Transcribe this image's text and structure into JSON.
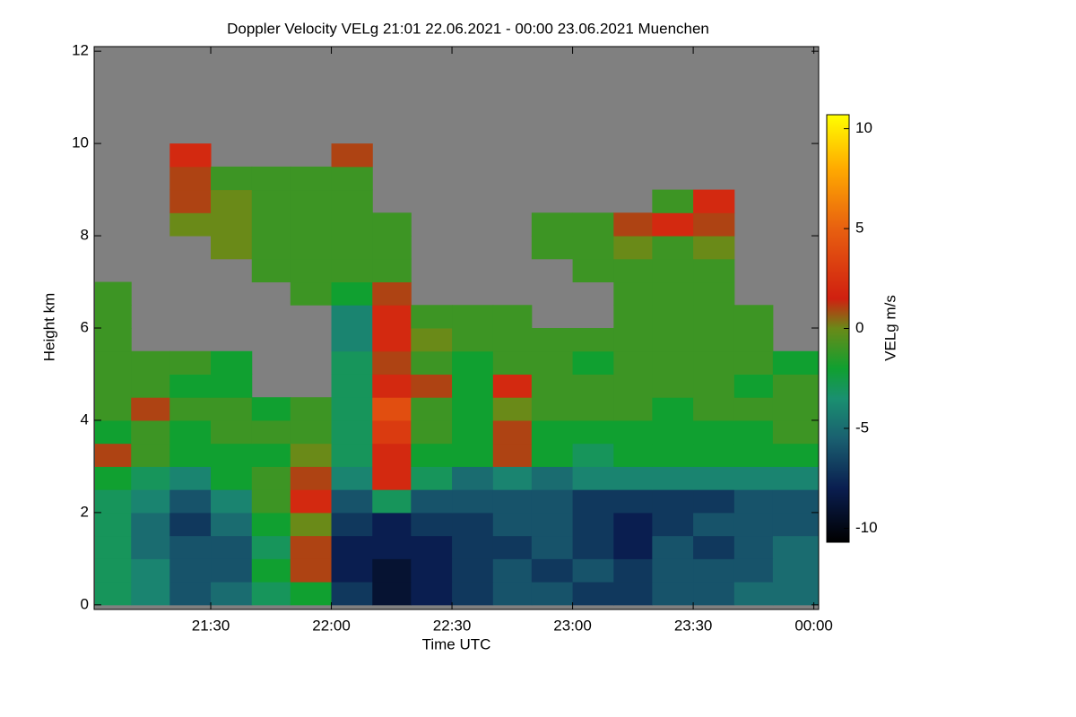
{
  "chart_data": {
    "type": "heatmap",
    "title": "Doppler Velocity VELg   21:01 22.06.2021 - 00:00 23.06.2021 Muenchen",
    "x_label": "Time UTC",
    "y_label": "Height km",
    "colorbar_label": "VELg m/s",
    "xlim": [
      21.0167,
      24.02
    ],
    "ylim": [
      -0.1,
      12.1
    ],
    "xticks": [
      {
        "value": 21.5,
        "label": "21:30"
      },
      {
        "value": 22,
        "label": "22:00"
      },
      {
        "value": 22.5,
        "label": "22:30"
      },
      {
        "value": 23,
        "label": "23:00"
      },
      {
        "value": 23.5,
        "label": "23:30"
      },
      {
        "value": 24,
        "label": "00:00"
      }
    ],
    "yticks": [
      0,
      2,
      4,
      6,
      8,
      10,
      12
    ],
    "clim": [
      -10.7,
      10.7
    ],
    "cticks": [
      -10,
      -5,
      0,
      5,
      10
    ],
    "background_color": "#808080",
    "colormap": [
      {
        "value": -10.7,
        "color": "#000000"
      },
      {
        "value": -8,
        "color": "#0a1e50"
      },
      {
        "value": -5.5,
        "color": "#1a6070"
      },
      {
        "value": -3.5,
        "color": "#1a9070"
      },
      {
        "value": -2,
        "color": "#10a030"
      },
      {
        "value": 0,
        "color": "#6a8a18"
      },
      {
        "value": 1.5,
        "color": "#d02010"
      },
      {
        "value": 5,
        "color": "#e86010"
      },
      {
        "value": 8,
        "color": "#ffaa00"
      },
      {
        "value": 10.7,
        "color": "#ffff00"
      }
    ],
    "x": [
      21.02,
      21.17,
      21.33,
      21.5,
      21.67,
      21.83,
      22,
      22.17,
      22.33,
      22.5,
      22.67,
      22.83,
      23,
      23.17,
      23.33,
      23.5,
      23.67,
      23.83
    ],
    "y": [
      0,
      0.5,
      1,
      1.5,
      2,
      2.5,
      3,
      3.5,
      4,
      4.5,
      5,
      5.5,
      6,
      6.5,
      7,
      7.5,
      8,
      8.5,
      9,
      9.5,
      10,
      10.5,
      11,
      11.5
    ],
    "z": [
      [
        -3,
        -4,
        -6,
        -5,
        -3,
        -2,
        -7,
        -9,
        -8,
        -7,
        -6,
        -6,
        -7,
        -7,
        -6,
        -6,
        -5,
        -5
      ],
      [
        -3,
        -4,
        -6,
        -6,
        -2,
        1,
        -8,
        -9,
        -8,
        -7,
        -6,
        -7,
        -6,
        -7,
        -6,
        -6,
        -6,
        -5
      ],
      [
        -3,
        -5,
        -6,
        -6,
        -3,
        1,
        -8,
        -8,
        -8,
        -7,
        -7,
        -6,
        -7,
        -8,
        -6,
        -7,
        -6,
        -5
      ],
      [
        -3,
        -5,
        -7,
        -5,
        -2,
        0,
        -7,
        -8,
        -7,
        -7,
        -6,
        -6,
        -7,
        -8,
        -7,
        -6,
        -6,
        -6
      ],
      [
        -3,
        -4,
        -6,
        -4,
        -1,
        2,
        -6,
        -3,
        -6,
        -6,
        -6,
        -6,
        -7,
        -7,
        -7,
        -7,
        -6,
        -6
      ],
      [
        -2,
        -3,
        -4,
        -2,
        -1,
        1,
        -4,
        2,
        -3,
        -5,
        -4,
        -5,
        -4,
        -4,
        -4,
        -4,
        -4,
        -4
      ],
      [
        1,
        -1,
        -2,
        -2,
        -2,
        0,
        -3,
        2,
        -2,
        -2,
        1,
        -2,
        -3,
        -2,
        -2,
        -2,
        -2,
        -2
      ],
      [
        -2,
        -1,
        -2,
        -1,
        -1,
        -1,
        -3,
        3,
        -1,
        -2,
        1,
        -2,
        -2,
        -2,
        -2,
        -2,
        -2,
        -1
      ],
      [
        -1,
        1,
        -1,
        -1,
        -2,
        -1,
        -3,
        4,
        -1,
        -2,
        0,
        -1,
        -1,
        -1,
        -2,
        -1,
        -1,
        -1
      ],
      [
        -1,
        -1,
        -2,
        -2,
        null,
        null,
        -3,
        2,
        1,
        -2,
        2,
        -1,
        -1,
        -1,
        -1,
        -1,
        -2,
        -1
      ],
      [
        -1,
        -1,
        -1,
        -2,
        null,
        null,
        -3,
        1,
        -1,
        -2,
        -1,
        -1,
        -2,
        -1,
        -1,
        -1,
        -1,
        -2
      ],
      [
        -1,
        null,
        null,
        null,
        null,
        null,
        -4,
        2,
        0,
        -1,
        -1,
        -1,
        -1,
        -1,
        -1,
        -1,
        -1,
        null
      ],
      [
        -1,
        null,
        null,
        null,
        null,
        null,
        -4,
        2,
        -1,
        -1,
        -1,
        null,
        null,
        -1,
        -1,
        -1,
        -1,
        null
      ],
      [
        -1,
        null,
        null,
        null,
        null,
        -1,
        -2,
        1,
        null,
        null,
        null,
        null,
        null,
        -1,
        -1,
        -1,
        null,
        null
      ],
      [
        null,
        null,
        null,
        null,
        -1,
        -1,
        -1,
        -1,
        null,
        null,
        null,
        null,
        -1,
        -1,
        -1,
        -1,
        null,
        null
      ],
      [
        null,
        null,
        null,
        0,
        -1,
        -1,
        -1,
        -1,
        null,
        null,
        null,
        -1,
        -1,
        0,
        -1,
        0,
        null,
        null
      ],
      [
        null,
        null,
        0,
        0,
        -1,
        -1,
        -1,
        -1,
        null,
        null,
        null,
        -1,
        -1,
        1,
        2,
        1,
        null,
        null
      ],
      [
        null,
        null,
        1,
        0,
        -1,
        -1,
        -1,
        null,
        null,
        null,
        null,
        null,
        null,
        null,
        -1,
        2,
        null,
        null
      ],
      [
        null,
        null,
        1,
        -1,
        -1,
        -1,
        -1,
        null,
        null,
        null,
        null,
        null,
        null,
        null,
        null,
        null,
        null,
        null
      ],
      [
        null,
        null,
        2,
        null,
        null,
        null,
        1,
        null,
        null,
        null,
        null,
        null,
        null,
        null,
        null,
        null,
        null,
        null
      ],
      [
        null,
        null,
        null,
        null,
        null,
        null,
        null,
        null,
        null,
        null,
        null,
        null,
        null,
        null,
        null,
        null,
        null,
        null
      ],
      [
        null,
        null,
        null,
        null,
        null,
        null,
        null,
        null,
        null,
        null,
        null,
        null,
        null,
        null,
        null,
        null,
        null,
        null
      ],
      [
        null,
        null,
        null,
        null,
        null,
        null,
        null,
        null,
        null,
        null,
        null,
        null,
        null,
        null,
        null,
        null,
        null,
        null
      ],
      [
        null,
        null,
        null,
        null,
        null,
        null,
        null,
        null,
        null,
        null,
        null,
        null,
        null,
        null,
        null,
        null,
        null,
        null
      ]
    ]
  }
}
